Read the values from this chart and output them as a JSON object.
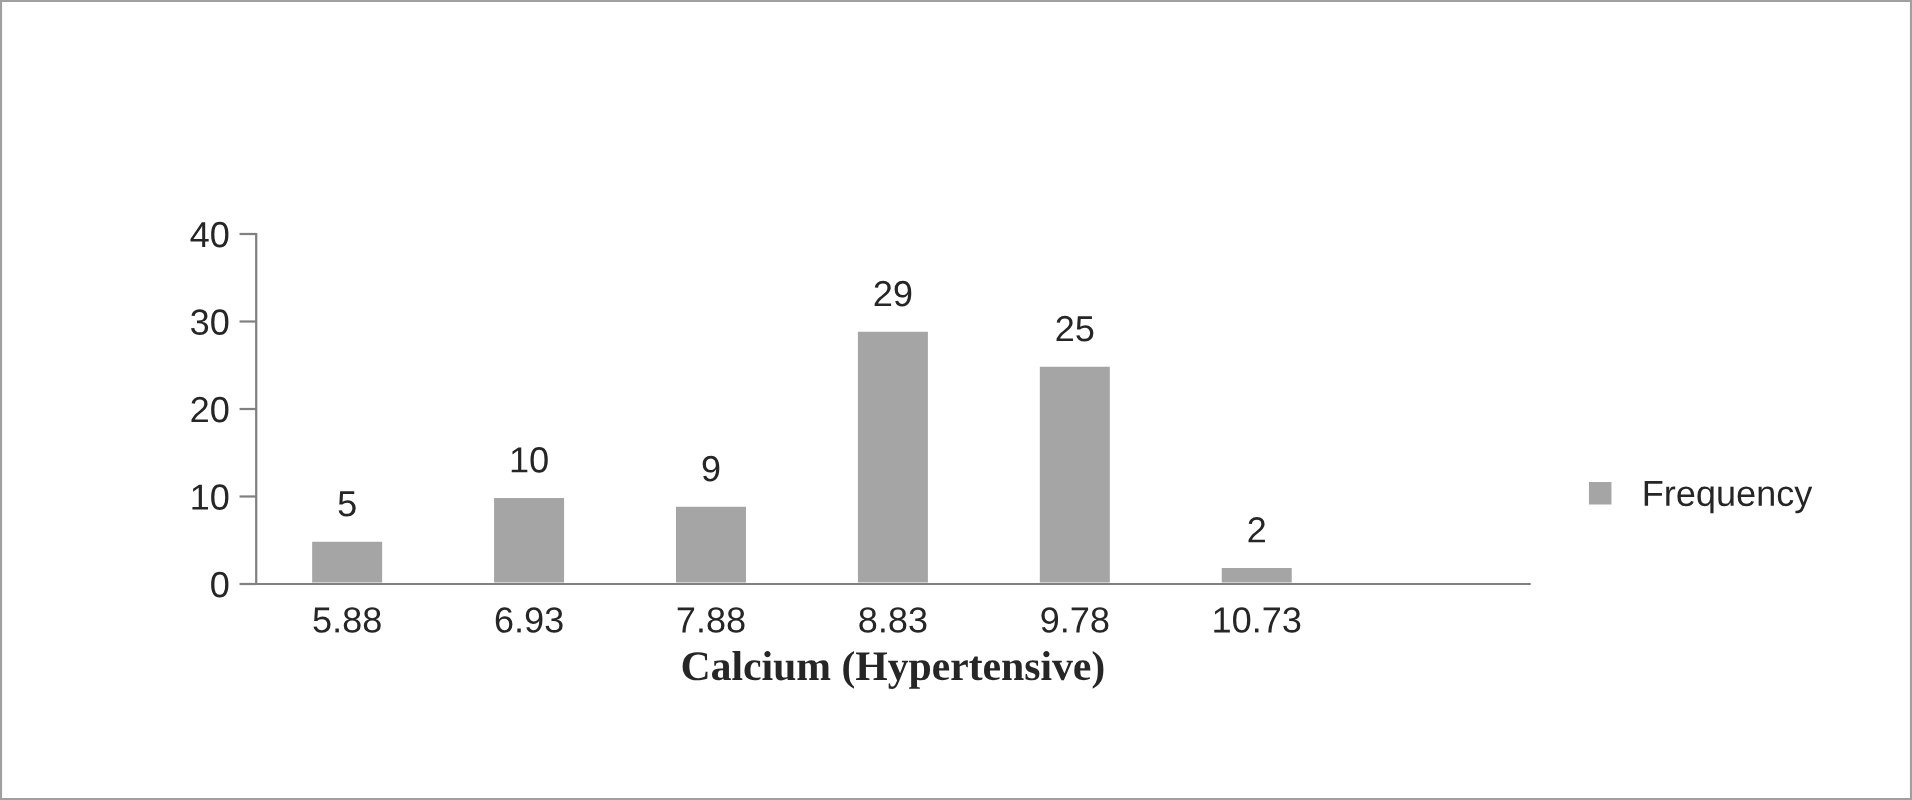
{
  "chart_data": {
    "type": "bar",
    "xlabel": "Calcium (Hypertensive)",
    "categories": [
      "5.88",
      "6.93",
      "7.88",
      "8.83",
      "9.78",
      "10.73",
      null
    ],
    "series": [
      {
        "name": "Frequency",
        "color": "#a5a5a5",
        "values": [
          5,
          10,
          9,
          29,
          25,
          2,
          null
        ]
      }
    ],
    "ylim": [
      0,
      40
    ],
    "yticks": [
      0,
      10,
      20,
      30,
      40
    ],
    "grid": false,
    "legend": "right",
    "data_labels": true
  }
}
